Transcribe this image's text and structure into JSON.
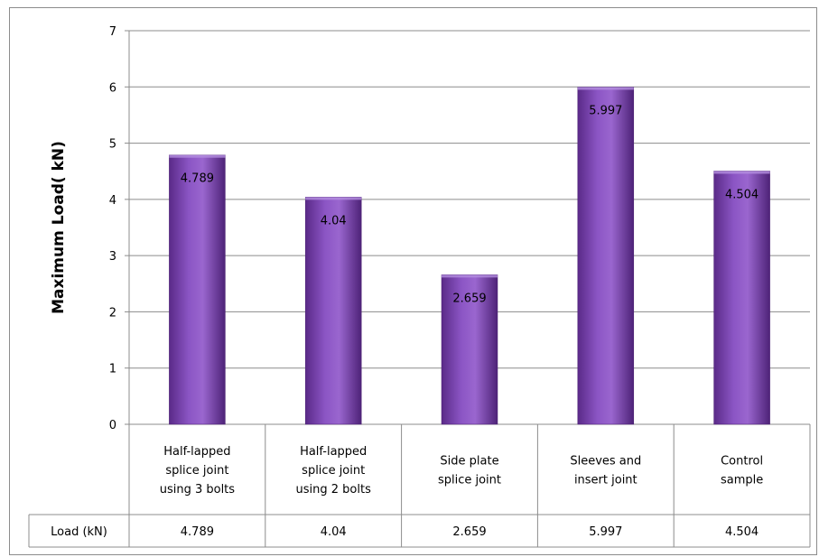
{
  "chart_data": {
    "type": "bar",
    "categories": [
      [
        "Half-lapped",
        "splice joint",
        "using 3 bolts"
      ],
      [
        "Half-lapped",
        "splice joint",
        "using 2 bolts"
      ],
      [
        "Side plate",
        "splice joint"
      ],
      [
        "Sleeves and",
        "insert joint"
      ],
      [
        "Control",
        "sample"
      ]
    ],
    "series": [
      {
        "name": "Load (kN)",
        "values": [
          4.789,
          4.04,
          2.659,
          5.997,
          4.504
        ]
      }
    ],
    "data_labels": [
      "4.789",
      "4.04",
      "2.659",
      "5.997",
      "4.504"
    ],
    "table_values": [
      "4.789",
      "4.04",
      "2.659",
      "5.997",
      "4.504"
    ],
    "ylabel": "Maximum Load( kN)",
    "ylim": [
      0,
      7
    ],
    "yticks": [
      "0",
      "1",
      "2",
      "3",
      "4",
      "5",
      "6",
      "7"
    ],
    "grid": true,
    "bar_color": "#7a3fb0",
    "data_table": true
  }
}
